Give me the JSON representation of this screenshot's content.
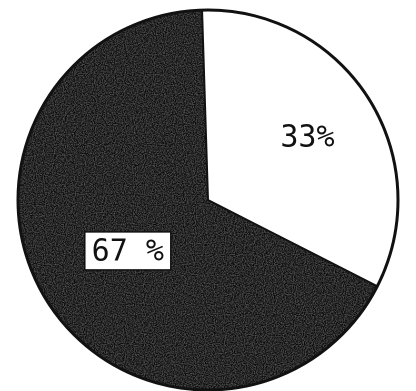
{
  "chart_data": {
    "type": "pie",
    "categories": [
      "",
      ""
    ],
    "values": [
      67,
      33
    ],
    "labels": [
      "67 %",
      "33%"
    ],
    "colors": [
      "#0d0d0d",
      "#ffffff"
    ],
    "legend": "none",
    "start_angle_deg": 27,
    "direction": "clockwise"
  }
}
